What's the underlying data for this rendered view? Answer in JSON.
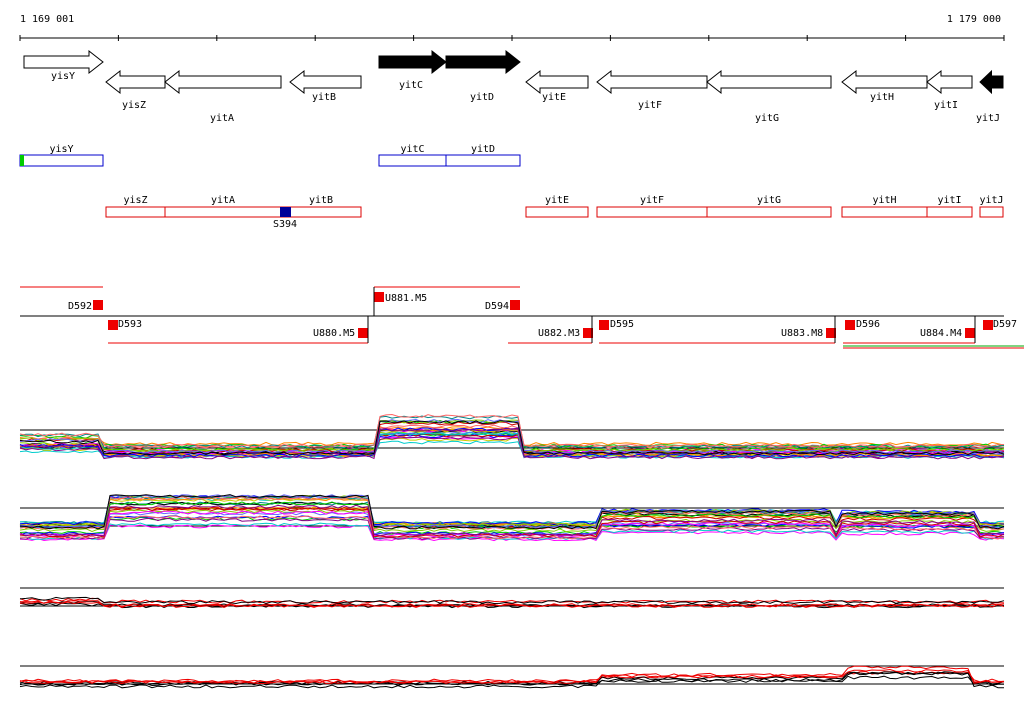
{
  "ruler": {
    "start": "1 169 001",
    "end": "1 179 000"
  },
  "genes": [
    "yisY",
    "yisZ",
    "yitA",
    "yitB",
    "yitC",
    "yitD",
    "yitE",
    "yitF",
    "yitG",
    "yitH",
    "yitI",
    "yitJ"
  ],
  "boxes_upper": [
    "yisY",
    "yitC",
    "yitD"
  ],
  "boxes_lower": [
    "yisZ",
    "yitA",
    "yitB",
    "yitE",
    "yitF",
    "yitG",
    "yitH",
    "yitI",
    "yitJ"
  ],
  "site": "S394",
  "features": [
    "D592",
    "U881.M5",
    "D594",
    "D593",
    "U880.M5",
    "U882.M3",
    "D595",
    "U883.M8",
    "D596",
    "U884.M4",
    "D597"
  ]
}
